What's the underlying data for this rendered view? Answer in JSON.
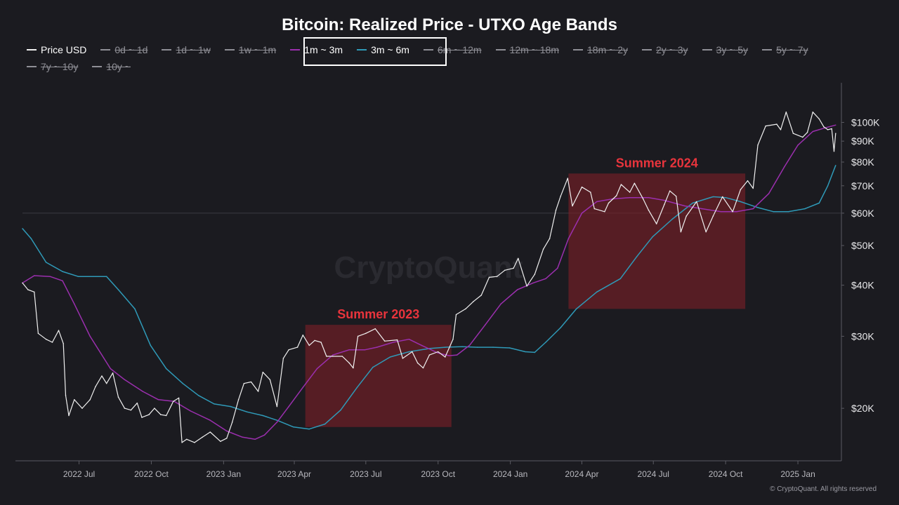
{
  "title": "Bitcoin: Realized Price - UTXO Age Bands",
  "legend": [
    {
      "label": "Price USD",
      "color": "#f0f0f0",
      "visible": true
    },
    {
      "label": "0d ~ 1d",
      "visible": false
    },
    {
      "label": "1d ~ 1w",
      "visible": false
    },
    {
      "label": "1w ~ 1m",
      "visible": false
    },
    {
      "label": "1m ~ 3m",
      "color": "#9b2fae",
      "visible": true
    },
    {
      "label": "3m ~ 6m",
      "color": "#2f9ab8",
      "visible": true
    },
    {
      "label": "6m ~ 12m",
      "visible": false
    },
    {
      "label": "12m ~ 18m",
      "visible": false
    },
    {
      "label": "18m ~ 2y",
      "visible": false
    },
    {
      "label": "2y ~ 3y",
      "visible": false
    },
    {
      "label": "3y ~ 5y",
      "visible": false
    },
    {
      "label": "5y ~ 7y",
      "visible": false
    },
    {
      "label": "7y ~ 10y",
      "visible": false
    },
    {
      "label": "10y ~",
      "visible": false
    }
  ],
  "watermark": "CryptoQuant",
  "footer": "© CryptoQuant. All rights reserved",
  "chart_data": {
    "type": "line",
    "y_scale": "log",
    "ylim": [
      15000,
      125000
    ],
    "xlim": [
      "2022-04-20",
      "2025-02-20"
    ],
    "x_tick_labels": [
      {
        "date": "2022-07-01",
        "label": "2022 Jul"
      },
      {
        "date": "2022-10-01",
        "label": "2022 Oct"
      },
      {
        "date": "2023-01-01",
        "label": "2023 Jan"
      },
      {
        "date": "2023-04-01",
        "label": "2023 Apr"
      },
      {
        "date": "2023-07-01",
        "label": "2023 Jul"
      },
      {
        "date": "2023-10-01",
        "label": "2023 Oct"
      },
      {
        "date": "2024-01-01",
        "label": "2024 Jan"
      },
      {
        "date": "2024-04-01",
        "label": "2024 Apr"
      },
      {
        "date": "2024-07-01",
        "label": "2024 Jul"
      },
      {
        "date": "2024-10-01",
        "label": "2024 Oct"
      },
      {
        "date": "2025-01-01",
        "label": "2025 Jan"
      }
    ],
    "y_tick_labels": [
      {
        "value": 20000,
        "label": "$20K"
      },
      {
        "value": 30000,
        "label": "$30K"
      },
      {
        "value": 40000,
        "label": "$40K"
      },
      {
        "value": 50000,
        "label": "$50K"
      },
      {
        "value": 60000,
        "label": "$60K"
      },
      {
        "value": 70000,
        "label": "$70K"
      },
      {
        "value": 80000,
        "label": "$80K"
      },
      {
        "value": 90000,
        "label": "$90K"
      },
      {
        "value": 100000,
        "label": "$100K"
      }
    ],
    "grid": "horizontal line at $60K",
    "annotations": [
      {
        "label": "Summer 2023",
        "x_start": "2023-04-15",
        "x_end": "2023-10-18",
        "y_low": 18000,
        "y_high": 32000,
        "color": "#e8343c"
      },
      {
        "label": "Summer 2024",
        "x_start": "2024-03-15",
        "x_end": "2024-10-26",
        "y_low": 35000,
        "y_high": 75000,
        "color": "#e8343c"
      }
    ],
    "series": [
      {
        "name": "Price USD",
        "color": "#f0f0f0",
        "points": [
          [
            "2022-04-20",
            40500
          ],
          [
            "2022-04-27",
            39000
          ],
          [
            "2022-05-05",
            38500
          ],
          [
            "2022-05-10",
            30500
          ],
          [
            "2022-05-20",
            29500
          ],
          [
            "2022-05-28",
            29000
          ],
          [
            "2022-06-05",
            31000
          ],
          [
            "2022-06-11",
            28800
          ],
          [
            "2022-06-14",
            21500
          ],
          [
            "2022-06-18",
            19200
          ],
          [
            "2022-06-25",
            21000
          ],
          [
            "2022-07-05",
            20000
          ],
          [
            "2022-07-15",
            21000
          ],
          [
            "2022-07-22",
            22600
          ],
          [
            "2022-07-30",
            24000
          ],
          [
            "2022-08-05",
            23000
          ],
          [
            "2022-08-13",
            24400
          ],
          [
            "2022-08-20",
            21300
          ],
          [
            "2022-08-28",
            20000
          ],
          [
            "2022-09-05",
            19800
          ],
          [
            "2022-09-13",
            20600
          ],
          [
            "2022-09-19",
            19000
          ],
          [
            "2022-09-28",
            19300
          ],
          [
            "2022-10-05",
            20000
          ],
          [
            "2022-10-13",
            19300
          ],
          [
            "2022-10-20",
            19200
          ],
          [
            "2022-10-29",
            20800
          ],
          [
            "2022-11-05",
            21200
          ],
          [
            "2022-11-09",
            16500
          ],
          [
            "2022-11-15",
            16800
          ],
          [
            "2022-11-25",
            16500
          ],
          [
            "2022-12-05",
            17000
          ],
          [
            "2022-12-15",
            17500
          ],
          [
            "2022-12-28",
            16600
          ],
          [
            "2023-01-05",
            16900
          ],
          [
            "2023-01-12",
            18500
          ],
          [
            "2023-01-20",
            21000
          ],
          [
            "2023-01-27",
            23000
          ],
          [
            "2023-02-05",
            23200
          ],
          [
            "2023-02-14",
            22000
          ],
          [
            "2023-02-20",
            24500
          ],
          [
            "2023-03-01",
            23500
          ],
          [
            "2023-03-10",
            20200
          ],
          [
            "2023-03-18",
            26500
          ],
          [
            "2023-03-25",
            27800
          ],
          [
            "2023-04-05",
            28200
          ],
          [
            "2023-04-12",
            30200
          ],
          [
            "2023-04-20",
            28500
          ],
          [
            "2023-04-27",
            29300
          ],
          [
            "2023-05-05",
            29000
          ],
          [
            "2023-05-12",
            26800
          ],
          [
            "2023-05-20",
            26800
          ],
          [
            "2023-06-01",
            26800
          ],
          [
            "2023-06-10",
            25800
          ],
          [
            "2023-06-15",
            25100
          ],
          [
            "2023-06-21",
            30000
          ],
          [
            "2023-07-01",
            30500
          ],
          [
            "2023-07-13",
            31300
          ],
          [
            "2023-07-25",
            29200
          ],
          [
            "2023-08-10",
            29400
          ],
          [
            "2023-08-17",
            26500
          ],
          [
            "2023-08-29",
            27500
          ],
          [
            "2023-09-05",
            25800
          ],
          [
            "2023-09-12",
            25100
          ],
          [
            "2023-09-20",
            27000
          ],
          [
            "2023-10-01",
            27500
          ],
          [
            "2023-10-10",
            26700
          ],
          [
            "2023-10-20",
            29500
          ],
          [
            "2023-10-24",
            33900
          ],
          [
            "2023-11-05",
            35000
          ],
          [
            "2023-11-15",
            36500
          ],
          [
            "2023-11-25",
            37800
          ],
          [
            "2023-12-05",
            41800
          ],
          [
            "2023-12-15",
            42000
          ],
          [
            "2023-12-25",
            43500
          ],
          [
            "2024-01-05",
            44000
          ],
          [
            "2024-01-11",
            46500
          ],
          [
            "2024-01-22",
            39800
          ],
          [
            "2024-02-01",
            42500
          ],
          [
            "2024-02-12",
            49000
          ],
          [
            "2024-02-20",
            52000
          ],
          [
            "2024-02-28",
            61000
          ],
          [
            "2024-03-05",
            66000
          ],
          [
            "2024-03-14",
            73000
          ],
          [
            "2024-03-20",
            62500
          ],
          [
            "2024-04-01",
            69500
          ],
          [
            "2024-04-12",
            67500
          ],
          [
            "2024-04-17",
            61500
          ],
          [
            "2024-04-30",
            60500
          ],
          [
            "2024-05-05",
            63500
          ],
          [
            "2024-05-15",
            66200
          ],
          [
            "2024-05-21",
            70500
          ],
          [
            "2024-06-01",
            67500
          ],
          [
            "2024-06-07",
            71000
          ],
          [
            "2024-06-18",
            65000
          ],
          [
            "2024-06-25",
            61000
          ],
          [
            "2024-07-05",
            56500
          ],
          [
            "2024-07-15",
            63000
          ],
          [
            "2024-07-22",
            68000
          ],
          [
            "2024-07-30",
            66000
          ],
          [
            "2024-08-05",
            54000
          ],
          [
            "2024-08-12",
            59000
          ],
          [
            "2024-08-25",
            64000
          ],
          [
            "2024-09-06",
            54000
          ],
          [
            "2024-09-15",
            59000
          ],
          [
            "2024-09-27",
            65800
          ],
          [
            "2024-10-10",
            60500
          ],
          [
            "2024-10-20",
            68500
          ],
          [
            "2024-10-29",
            72000
          ],
          [
            "2024-11-05",
            69000
          ],
          [
            "2024-11-11",
            88000
          ],
          [
            "2024-11-21",
            98000
          ],
          [
            "2024-12-05",
            99000
          ],
          [
            "2024-12-10",
            96000
          ],
          [
            "2024-12-17",
            106000
          ],
          [
            "2024-12-26",
            94000
          ],
          [
            "2025-01-07",
            92000
          ],
          [
            "2025-01-13",
            94500
          ],
          [
            "2025-01-20",
            106000
          ],
          [
            "2025-01-28",
            102000
          ],
          [
            "2025-02-03",
            97500
          ],
          [
            "2025-02-08",
            96000
          ],
          [
            "2025-02-13",
            96500
          ],
          [
            "2025-02-16",
            85000
          ],
          [
            "2025-02-18",
            94000
          ]
        ]
      },
      {
        "name": "1m ~ 3m",
        "color": "#9b2fae",
        "points": [
          [
            "2022-04-20",
            40500
          ],
          [
            "2022-05-05",
            42200
          ],
          [
            "2022-05-25",
            42000
          ],
          [
            "2022-06-10",
            41000
          ],
          [
            "2022-06-25",
            36000
          ],
          [
            "2022-07-15",
            30000
          ],
          [
            "2022-08-10",
            25000
          ],
          [
            "2022-08-28",
            23500
          ],
          [
            "2022-09-20",
            22000
          ],
          [
            "2022-10-10",
            21000
          ],
          [
            "2022-10-30",
            20800
          ],
          [
            "2022-11-20",
            19700
          ],
          [
            "2022-12-15",
            18700
          ],
          [
            "2023-01-05",
            17600
          ],
          [
            "2023-01-25",
            17000
          ],
          [
            "2023-02-10",
            16800
          ],
          [
            "2023-02-22",
            17200
          ],
          [
            "2023-03-10",
            18500
          ],
          [
            "2023-03-25",
            20200
          ],
          [
            "2023-04-12",
            22500
          ],
          [
            "2023-04-30",
            25000
          ],
          [
            "2023-05-20",
            27000
          ],
          [
            "2023-06-10",
            27800
          ],
          [
            "2023-06-30",
            27800
          ],
          [
            "2023-07-15",
            28200
          ],
          [
            "2023-08-05",
            29000
          ],
          [
            "2023-08-25",
            29500
          ],
          [
            "2023-09-10",
            28500
          ],
          [
            "2023-10-01",
            27300
          ],
          [
            "2023-10-15",
            26900
          ],
          [
            "2023-10-25",
            27000
          ],
          [
            "2023-11-10",
            28500
          ],
          [
            "2023-11-30",
            32000
          ],
          [
            "2023-12-20",
            36000
          ],
          [
            "2024-01-10",
            39000
          ],
          [
            "2024-01-30",
            40500
          ],
          [
            "2024-02-15",
            41500
          ],
          [
            "2024-03-01",
            44000
          ],
          [
            "2024-03-15",
            52000
          ],
          [
            "2024-04-01",
            60000
          ],
          [
            "2024-04-20",
            64000
          ],
          [
            "2024-05-10",
            65000
          ],
          [
            "2024-06-01",
            65500
          ],
          [
            "2024-06-25",
            65500
          ],
          [
            "2024-07-15",
            64500
          ],
          [
            "2024-08-10",
            62500
          ],
          [
            "2024-09-01",
            61500
          ],
          [
            "2024-09-25",
            60500
          ],
          [
            "2024-10-15",
            60500
          ],
          [
            "2024-11-05",
            61500
          ],
          [
            "2024-11-25",
            67000
          ],
          [
            "2024-12-15",
            78000
          ],
          [
            "2025-01-01",
            88000
          ],
          [
            "2025-01-20",
            95000
          ],
          [
            "2025-02-05",
            97000
          ],
          [
            "2025-02-18",
            98500
          ]
        ]
      },
      {
        "name": "3m ~ 6m",
        "color": "#2f9ab8",
        "points": [
          [
            "2022-04-20",
            55000
          ],
          [
            "2022-05-01",
            52000
          ],
          [
            "2022-05-20",
            45500
          ],
          [
            "2022-06-10",
            43200
          ],
          [
            "2022-06-30",
            42000
          ],
          [
            "2022-07-20",
            42000
          ],
          [
            "2022-08-05",
            42000
          ],
          [
            "2022-08-20",
            39000
          ],
          [
            "2022-09-10",
            35000
          ],
          [
            "2022-09-30",
            28500
          ],
          [
            "2022-10-20",
            25000
          ],
          [
            "2022-11-10",
            23000
          ],
          [
            "2022-11-30",
            21500
          ],
          [
            "2022-12-20",
            20500
          ],
          [
            "2023-01-10",
            20200
          ],
          [
            "2023-01-31",
            19600
          ],
          [
            "2023-02-20",
            19200
          ],
          [
            "2023-03-10",
            18700
          ],
          [
            "2023-03-31",
            18000
          ],
          [
            "2023-04-20",
            17800
          ],
          [
            "2023-05-10",
            18300
          ],
          [
            "2023-05-30",
            19800
          ],
          [
            "2023-06-20",
            22500
          ],
          [
            "2023-07-10",
            25200
          ],
          [
            "2023-08-01",
            26700
          ],
          [
            "2023-08-25",
            27500
          ],
          [
            "2023-09-20",
            28000
          ],
          [
            "2023-10-10",
            28200
          ],
          [
            "2023-11-01",
            28300
          ],
          [
            "2023-11-20",
            28200
          ],
          [
            "2023-12-10",
            28200
          ],
          [
            "2023-12-31",
            28100
          ],
          [
            "2024-01-20",
            27500
          ],
          [
            "2024-02-01",
            27400
          ],
          [
            "2024-02-15",
            29000
          ],
          [
            "2024-03-05",
            31500
          ],
          [
            "2024-03-25",
            35000
          ],
          [
            "2024-04-20",
            38500
          ],
          [
            "2024-05-20",
            41500
          ],
          [
            "2024-06-10",
            47000
          ],
          [
            "2024-06-30",
            52500
          ],
          [
            "2024-07-25",
            58000
          ],
          [
            "2024-08-20",
            63500
          ],
          [
            "2024-09-15",
            65800
          ],
          [
            "2024-10-01",
            65500
          ],
          [
            "2024-10-20",
            64000
          ],
          [
            "2024-11-10",
            62000
          ],
          [
            "2024-12-01",
            60500
          ],
          [
            "2024-12-20",
            60500
          ],
          [
            "2025-01-10",
            61500
          ],
          [
            "2025-01-28",
            63500
          ],
          [
            "2025-02-08",
            70000
          ],
          [
            "2025-02-18",
            78500
          ]
        ]
      }
    ]
  }
}
